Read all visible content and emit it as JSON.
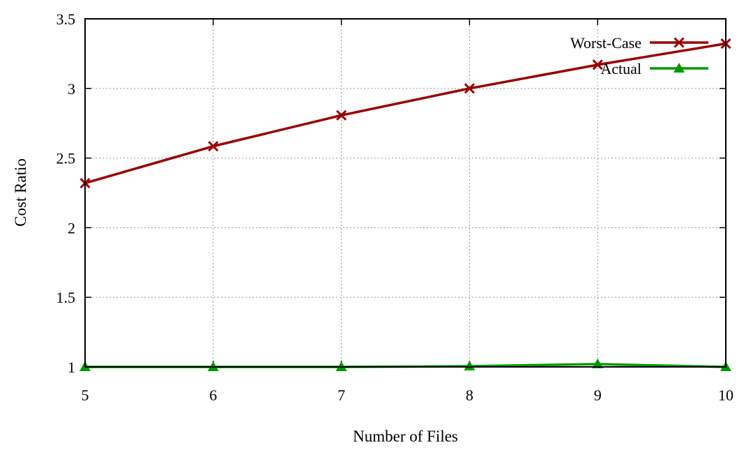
{
  "chart_data": {
    "type": "line",
    "xlabel": "Number of Files",
    "ylabel": "Cost Ratio",
    "xlim": [
      5,
      10
    ],
    "ylim": [
      1,
      3.5
    ],
    "x_ticks": [
      "5",
      "6",
      "7",
      "8",
      "9",
      "10"
    ],
    "y_ticks": [
      "1",
      "1.5",
      "2",
      "2.5",
      "3",
      "3.5"
    ],
    "grid": true,
    "legend_position": "top-right",
    "x": [
      5,
      6,
      7,
      8,
      9,
      10
    ],
    "series": [
      {
        "name": "Worst-Case",
        "color": "#990000",
        "marker": "x",
        "values": [
          2.32,
          2.585,
          2.807,
          3.0,
          3.17,
          3.322
        ]
      },
      {
        "name": "Actual",
        "color": "#009900",
        "marker": "triangle",
        "values": [
          1.0,
          1.0,
          1.0,
          1.005,
          1.02,
          1.0
        ]
      }
    ]
  }
}
